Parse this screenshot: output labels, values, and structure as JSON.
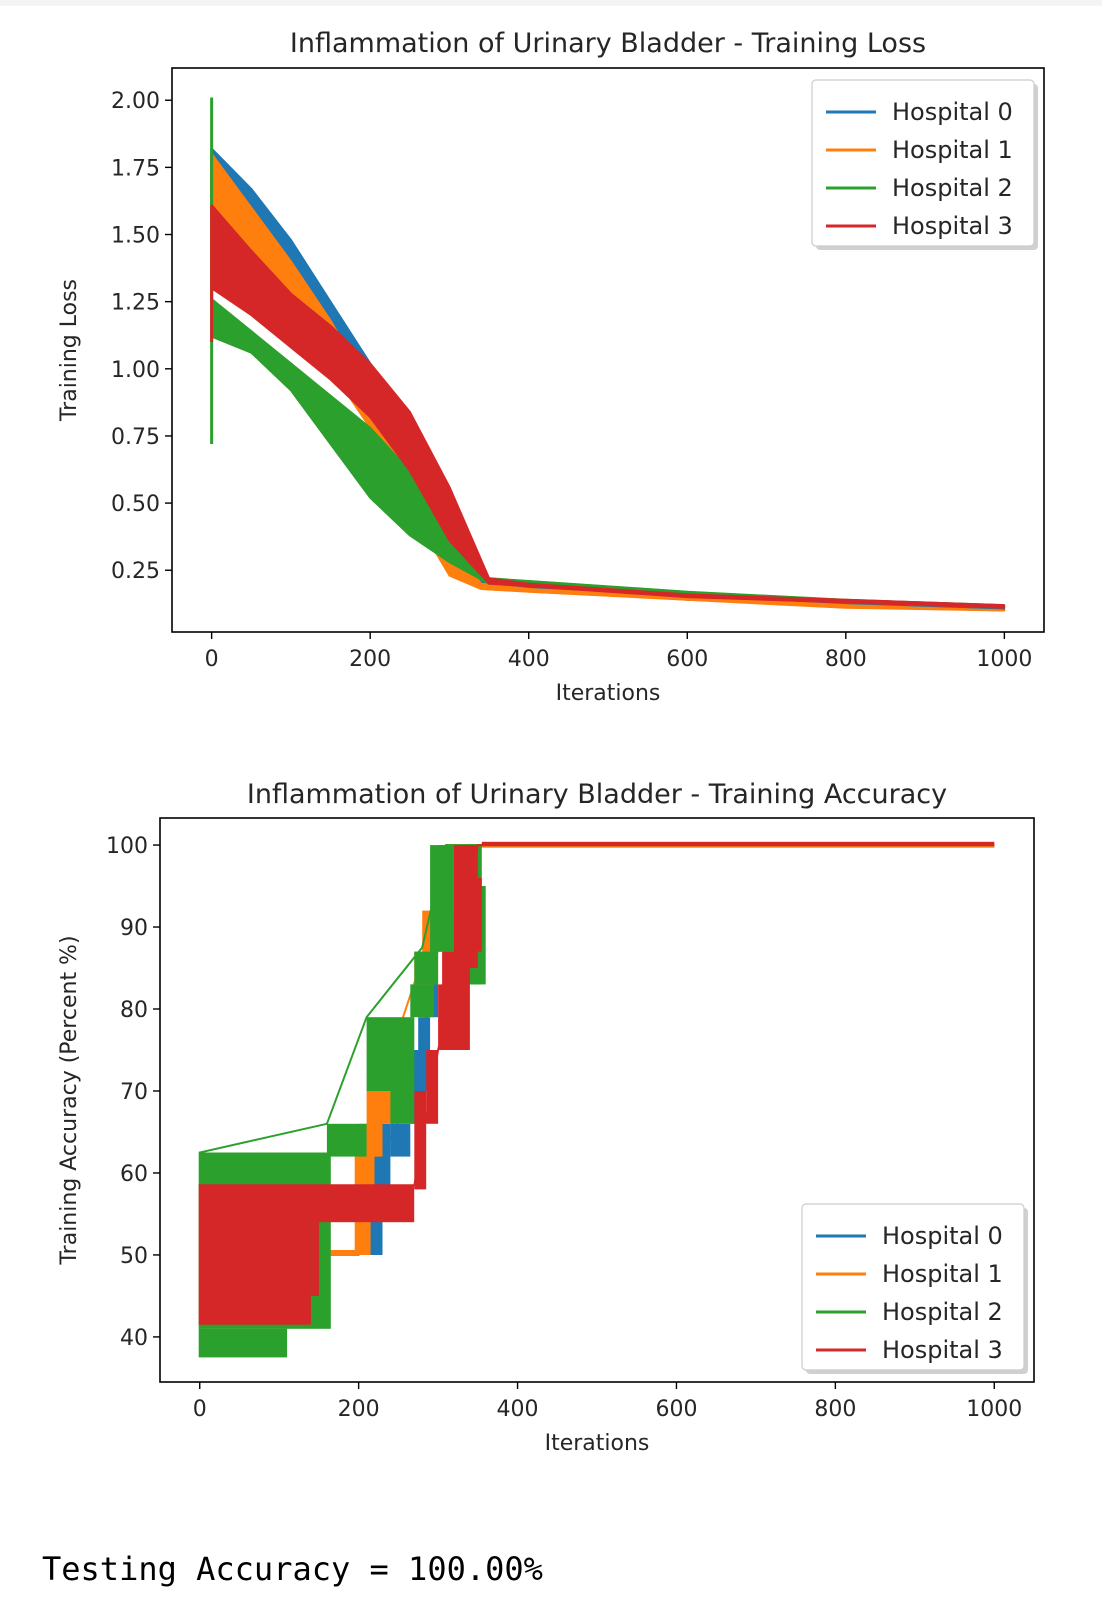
{
  "chart_data": [
    {
      "type": "line",
      "title": "Inflammation of Urinary Bladder - Training Loss",
      "xlabel": "Iterations",
      "ylabel": "Training Loss",
      "xlim": [
        -50,
        1050
      ],
      "ylim": [
        0.02,
        2.12
      ],
      "xticks": [
        0,
        200,
        400,
        600,
        800,
        1000
      ],
      "xtick_labels": [
        "0",
        "200",
        "400",
        "600",
        "800",
        "1000"
      ],
      "yticks": [
        0.25,
        0.5,
        0.75,
        1.0,
        1.25,
        1.5,
        1.75,
        2.0
      ],
      "ytick_labels": [
        "0.25",
        "0.50",
        "0.75",
        "1.00",
        "1.25",
        "1.50",
        "1.75",
        "2.00"
      ],
      "legend_position": "top-right",
      "series": [
        {
          "name": "Hospital 0",
          "color": "#1f77b4",
          "upper": [
            [
              0,
              1.82
            ],
            [
              50,
              1.67
            ],
            [
              100,
              1.48
            ],
            [
              150,
              1.25
            ],
            [
              200,
              1.02
            ],
            [
              250,
              0.72
            ],
            [
              300,
              0.45
            ],
            [
              340,
              0.21
            ],
            [
              400,
              0.19
            ],
            [
              600,
              0.15
            ],
            [
              800,
              0.13
            ],
            [
              1000,
              0.11
            ]
          ],
          "lower": [
            [
              0,
              1.6
            ],
            [
              50,
              1.5
            ],
            [
              100,
              1.33
            ],
            [
              150,
              1.12
            ],
            [
              200,
              0.91
            ],
            [
              250,
              0.62
            ],
            [
              300,
              0.32
            ],
            [
              340,
              0.19
            ],
            [
              400,
              0.18
            ],
            [
              600,
              0.14
            ],
            [
              800,
              0.12
            ],
            [
              1000,
              0.1
            ]
          ],
          "spike": [
            1.3,
            1.82
          ]
        },
        {
          "name": "Hospital 1",
          "color": "#ff7f0e",
          "upper": [
            [
              0,
              1.8
            ],
            [
              50,
              1.6
            ],
            [
              100,
              1.4
            ],
            [
              150,
              1.18
            ],
            [
              200,
              0.92
            ],
            [
              250,
              0.62
            ],
            [
              300,
              0.35
            ],
            [
              340,
              0.2
            ],
            [
              400,
              0.18
            ],
            [
              600,
              0.15
            ],
            [
              800,
              0.12
            ],
            [
              1000,
              0.1
            ]
          ],
          "lower": [
            [
              0,
              1.58
            ],
            [
              50,
              1.42
            ],
            [
              100,
              1.22
            ],
            [
              150,
              1.0
            ],
            [
              200,
              0.78
            ],
            [
              250,
              0.48
            ],
            [
              300,
              0.23
            ],
            [
              340,
              0.18
            ],
            [
              400,
              0.17
            ],
            [
              600,
              0.14
            ],
            [
              800,
              0.11
            ],
            [
              1000,
              0.1
            ]
          ],
          "spike": [
            1.25,
            1.8
          ]
        },
        {
          "name": "Hospital 2",
          "color": "#2ca02c",
          "upper": [
            [
              0,
              1.26
            ],
            [
              50,
              1.14
            ],
            [
              100,
              1.02
            ],
            [
              150,
              0.9
            ],
            [
              200,
              0.78
            ],
            [
              250,
              0.62
            ],
            [
              300,
              0.46
            ],
            [
              350,
              0.22
            ],
            [
              400,
              0.21
            ],
            [
              600,
              0.17
            ],
            [
              800,
              0.14
            ],
            [
              1000,
              0.12
            ]
          ],
          "lower": [
            [
              0,
              1.12
            ],
            [
              50,
              1.06
            ],
            [
              100,
              0.92
            ],
            [
              150,
              0.72
            ],
            [
              200,
              0.52
            ],
            [
              250,
              0.38
            ],
            [
              300,
              0.28
            ],
            [
              350,
              0.2
            ],
            [
              400,
              0.2
            ],
            [
              600,
              0.16
            ],
            [
              800,
              0.13
            ],
            [
              1000,
              0.11
            ]
          ],
          "spike": [
            0.72,
            2.01
          ]
        },
        {
          "name": "Hospital 3",
          "color": "#d62728",
          "upper": [
            [
              0,
              1.61
            ],
            [
              50,
              1.44
            ],
            [
              100,
              1.28
            ],
            [
              150,
              1.16
            ],
            [
              200,
              1.02
            ],
            [
              250,
              0.84
            ],
            [
              300,
              0.56
            ],
            [
              350,
              0.22
            ],
            [
              400,
              0.2
            ],
            [
              600,
              0.16
            ],
            [
              800,
              0.14
            ],
            [
              1000,
              0.12
            ]
          ],
          "lower": [
            [
              0,
              1.3
            ],
            [
              50,
              1.2
            ],
            [
              100,
              1.08
            ],
            [
              150,
              0.96
            ],
            [
              200,
              0.82
            ],
            [
              250,
              0.62
            ],
            [
              300,
              0.36
            ],
            [
              350,
              0.2
            ],
            [
              400,
              0.19
            ],
            [
              600,
              0.15
            ],
            [
              800,
              0.13
            ],
            [
              1000,
              0.11
            ]
          ],
          "spike": [
            1.1,
            1.61
          ]
        }
      ]
    },
    {
      "type": "line",
      "title": "Inflammation of Urinary Bladder - Training Accuracy",
      "xlabel": "Iterations",
      "ylabel": "Training Accuracy (Percent %)",
      "xlim": [
        -50,
        1050
      ],
      "ylim": [
        34.5,
        103.3
      ],
      "xticks": [
        0,
        200,
        400,
        600,
        800,
        1000
      ],
      "xtick_labels": [
        "0",
        "200",
        "400",
        "600",
        "800",
        "1000"
      ],
      "yticks": [
        40,
        50,
        60,
        70,
        80,
        90,
        100
      ],
      "ytick_labels": [
        "40",
        "50",
        "60",
        "70",
        "80",
        "90",
        "100"
      ],
      "legend_position": "lower-right",
      "series": [
        {
          "name": "Hospital 0",
          "color": "#1f77b4",
          "bands": [
            [
              210,
              230,
              50,
              58
            ],
            [
              220,
              240,
              58,
              66
            ],
            [
              240,
              265,
              62,
              66
            ],
            [
              265,
              280,
              66,
              75
            ],
            [
              275,
              290,
              70,
              79
            ],
            [
              290,
              300,
              79,
              87
            ],
            [
              300,
              320,
              87,
              100
            ],
            [
              320,
              340,
              95,
              100
            ],
            [
              340,
              1000,
              100,
              100
            ]
          ],
          "line": [
            [
              0,
              50
            ],
            [
              200,
              50
            ],
            [
              230,
              62.5
            ],
            [
              270,
              70
            ],
            [
              300,
              87.5
            ],
            [
              330,
              100
            ],
            [
              1000,
              100
            ]
          ]
        },
        {
          "name": "Hospital 1",
          "color": "#ff7f0e",
          "bands": [
            [
              0,
              200,
              50,
              50.6
            ],
            [
              195,
              215,
              50,
              62.5
            ],
            [
              200,
              220,
              58,
              66
            ],
            [
              210,
              230,
              62,
              70
            ],
            [
              225,
              245,
              66,
              70
            ],
            [
              270,
              300,
              83,
              87
            ],
            [
              280,
              300,
              87,
              92
            ],
            [
              300,
              320,
              92,
              100
            ],
            [
              320,
              345,
              95,
              100
            ],
            [
              345,
              1000,
              100,
              100
            ]
          ],
          "line": [
            [
              0,
              50
            ],
            [
              200,
              50
            ],
            [
              210,
              62.5
            ],
            [
              225,
              70
            ],
            [
              285,
              87.5
            ],
            [
              310,
              100
            ],
            [
              1000,
              100
            ]
          ]
        },
        {
          "name": "Hospital 2",
          "color": "#2ca02c",
          "bands": [
            [
              0,
              110,
              37.5,
              41
            ],
            [
              0,
              165,
              41,
              62.5
            ],
            [
              160,
              210,
              62,
              66
            ],
            [
              210,
              270,
              70,
              79
            ],
            [
              240,
              270,
              66,
              70
            ],
            [
              265,
              295,
              79,
              83
            ],
            [
              270,
              300,
              83,
              87
            ],
            [
              290,
              320,
              87,
              100
            ],
            [
              320,
              355,
              83,
              100
            ],
            [
              350,
              360,
              83,
              95
            ]
          ],
          "line": [
            [
              0,
              37.5
            ],
            [
              0,
              62.5
            ],
            [
              160,
              66
            ],
            [
              210,
              79
            ],
            [
              280,
              87.5
            ],
            [
              310,
              100
            ],
            [
              1000,
              100
            ]
          ]
        },
        {
          "name": "Hospital 3",
          "color": "#d62728",
          "bands": [
            [
              0,
              140,
              41.5,
              58.5
            ],
            [
              0,
              270,
              54,
              58.5
            ],
            [
              140,
              150,
              45,
              54
            ],
            [
              270,
              285,
              58,
              70
            ],
            [
              285,
              300,
              66,
              75
            ],
            [
              300,
              320,
              75,
              83
            ],
            [
              305,
              340,
              75,
              87
            ],
            [
              320,
              350,
              85,
              100
            ],
            [
              340,
              355,
              87,
              96
            ],
            [
              355,
              1000,
              100,
              100.4
            ]
          ],
          "line": [
            [
              0,
              41.5
            ],
            [
              0,
              58.5
            ],
            [
              270,
              58.5
            ],
            [
              300,
              75
            ],
            [
              330,
              87.5
            ],
            [
              350,
              100
            ],
            [
              1000,
              100
            ]
          ]
        }
      ]
    }
  ],
  "output_text": "Testing Accuracy = 100.00%"
}
